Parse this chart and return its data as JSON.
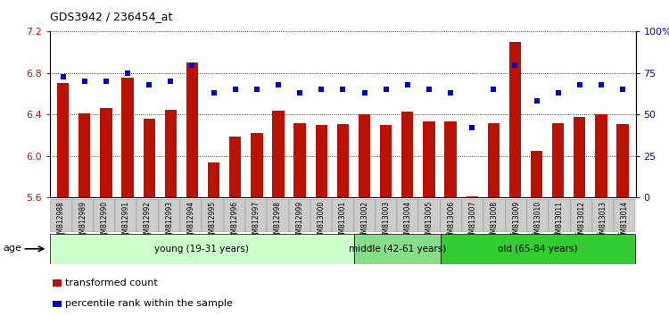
{
  "title": "GDS3942 / 236454_at",
  "samples": [
    "GSM812988",
    "GSM812989",
    "GSM812990",
    "GSM812991",
    "GSM812992",
    "GSM812993",
    "GSM812994",
    "GSM812995",
    "GSM812996",
    "GSM812997",
    "GSM812998",
    "GSM812999",
    "GSM813000",
    "GSM813001",
    "GSM813002",
    "GSM813003",
    "GSM813004",
    "GSM813005",
    "GSM813006",
    "GSM813007",
    "GSM813008",
    "GSM813009",
    "GSM813010",
    "GSM813011",
    "GSM813012",
    "GSM813013",
    "GSM813014"
  ],
  "bar_values": [
    6.7,
    6.41,
    6.46,
    6.76,
    6.36,
    6.45,
    6.9,
    5.94,
    6.19,
    6.22,
    6.44,
    6.32,
    6.3,
    6.31,
    6.4,
    6.3,
    6.43,
    6.33,
    6.33,
    5.61,
    6.32,
    7.1,
    6.05,
    6.32,
    6.38,
    6.4,
    6.31
  ],
  "scatter_values": [
    73,
    70,
    70,
    75,
    68,
    70,
    80,
    63,
    65,
    65,
    68,
    63,
    65,
    65,
    63,
    65,
    68,
    65,
    63,
    42,
    65,
    80,
    58,
    63,
    68,
    68,
    65
  ],
  "ylim_left": [
    5.6,
    7.2
  ],
  "bar_baseline": 5.6,
  "ylim_right": [
    0,
    100
  ],
  "yticks_left": [
    5.6,
    6.0,
    6.4,
    6.8,
    7.2
  ],
  "yticks_right": [
    0,
    25,
    50,
    75,
    100
  ],
  "ytick_labels_right": [
    "0",
    "25",
    "50",
    "75",
    "100%"
  ],
  "bar_color": "#bb1100",
  "scatter_color": "#0000cc",
  "age_groups": [
    {
      "label": "young (19-31 years)",
      "start": 0,
      "end": 14,
      "color": "#ccffcc"
    },
    {
      "label": "middle (42-61 years)",
      "start": 14,
      "end": 18,
      "color": "#88dd88"
    },
    {
      "label": "old (65-84 years)",
      "start": 18,
      "end": 27,
      "color": "#33cc33"
    }
  ],
  "legend_items": [
    {
      "label": "transformed count",
      "color": "#bb1100"
    },
    {
      "label": "percentile rank within the sample",
      "color": "#0000cc"
    }
  ],
  "age_label": "age"
}
